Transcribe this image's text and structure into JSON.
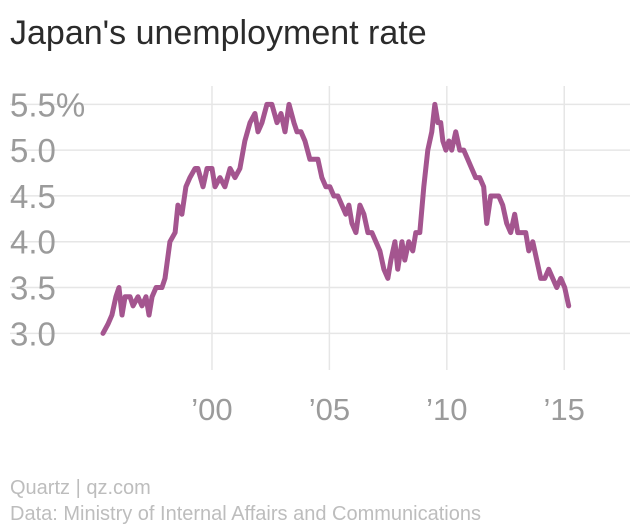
{
  "chart_data": {
    "type": "line",
    "title": "Japan's unemployment rate",
    "source_line": "Quartz | qz.com",
    "data_note": "Data: Ministry of Internal Affairs and Communications",
    "color": "#a4558f",
    "grid": true,
    "xlim": [
      1991.4,
      2017.8
    ],
    "xticks": [
      {
        "value": 2000,
        "label": "’00"
      },
      {
        "value": 2005,
        "label": "’05"
      },
      {
        "value": 2010,
        "label": "’10"
      },
      {
        "value": 2015,
        "label": "’15"
      }
    ],
    "ylim": [
      2.6,
      5.7
    ],
    "yticks": [
      {
        "value": 3,
        "label": "3.0"
      },
      3.5,
      {
        "value": 4,
        "label": "4.0"
      },
      4.5,
      {
        "value": 5,
        "label": "5.0"
      },
      {
        "value": 5.5,
        "label": "5.5%"
      }
    ],
    "x": [
      1995.36,
      1995.57,
      1995.74,
      1995.91,
      1996.04,
      1996.17,
      1996.3,
      1996.51,
      1996.64,
      1996.85,
      1997.02,
      1997.19,
      1997.32,
      1997.45,
      1997.62,
      1997.87,
      1998.0,
      1998.21,
      1998.43,
      1998.55,
      1998.72,
      1998.89,
      1999.06,
      1999.28,
      1999.4,
      1999.62,
      1999.79,
      2000.0,
      2000.13,
      2000.34,
      2000.55,
      2000.77,
      2000.98,
      2001.19,
      2001.4,
      2001.62,
      2001.83,
      2001.96,
      2002.13,
      2002.34,
      2002.55,
      2002.77,
      2002.94,
      2003.11,
      2003.28,
      2003.49,
      2003.62,
      2003.79,
      2003.96,
      2004.17,
      2004.34,
      2004.51,
      2004.68,
      2004.85,
      2005.02,
      2005.19,
      2005.36,
      2005.53,
      2005.7,
      2005.83,
      2005.96,
      2006.13,
      2006.3,
      2006.47,
      2006.64,
      2006.81,
      2006.98,
      2007.15,
      2007.32,
      2007.49,
      2007.62,
      2007.79,
      2007.91,
      2008.09,
      2008.21,
      2008.38,
      2008.55,
      2008.68,
      2008.85,
      2009.02,
      2009.19,
      2009.36,
      2009.49,
      2009.62,
      2009.74,
      2009.83,
      2009.96,
      2010.09,
      2010.21,
      2010.38,
      2010.55,
      2010.72,
      2010.89,
      2011.06,
      2011.23,
      2011.4,
      2011.57,
      2011.7,
      2011.87,
      2012.04,
      2012.21,
      2012.38,
      2012.55,
      2012.72,
      2012.89,
      2013.02,
      2013.19,
      2013.36,
      2013.49,
      2013.66,
      2013.83,
      2014.0,
      2014.17,
      2014.34,
      2014.51,
      2014.68,
      2014.85,
      2015.02,
      2015.19
    ],
    "values": [
      3.0,
      3.1,
      3.2,
      3.4,
      3.5,
      3.2,
      3.4,
      3.4,
      3.3,
      3.4,
      3.3,
      3.4,
      3.2,
      3.4,
      3.5,
      3.5,
      3.6,
      4.0,
      4.1,
      4.4,
      4.3,
      4.6,
      4.7,
      4.8,
      4.8,
      4.6,
      4.8,
      4.8,
      4.6,
      4.7,
      4.6,
      4.8,
      4.7,
      4.8,
      5.1,
      5.3,
      5.4,
      5.2,
      5.3,
      5.5,
      5.5,
      5.3,
      5.4,
      5.2,
      5.5,
      5.3,
      5.2,
      5.2,
      5.1,
      4.9,
      4.9,
      4.9,
      4.7,
      4.6,
      4.6,
      4.5,
      4.5,
      4.4,
      4.3,
      4.4,
      4.2,
      4.1,
      4.4,
      4.3,
      4.1,
      4.1,
      4.0,
      3.9,
      3.7,
      3.6,
      3.8,
      4.0,
      3.7,
      4.0,
      3.8,
      4.0,
      3.9,
      4.1,
      4.1,
      4.6,
      5.0,
      5.2,
      5.5,
      5.3,
      5.3,
      5.1,
      5.0,
      5.1,
      5.0,
      5.2,
      5.0,
      5.0,
      4.9,
      4.8,
      4.7,
      4.7,
      4.6,
      4.2,
      4.5,
      4.5,
      4.5,
      4.4,
      4.2,
      4.1,
      4.3,
      4.1,
      4.1,
      4.1,
      3.9,
      4.0,
      3.8,
      3.6,
      3.6,
      3.7,
      3.6,
      3.5,
      3.6,
      3.5,
      3.3
    ]
  }
}
